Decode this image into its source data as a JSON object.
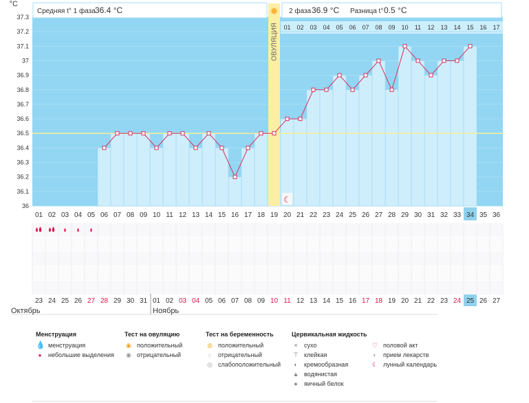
{
  "header": {
    "y_unit": "°C",
    "phase1_label": "Средняя t° 1 фаза",
    "phase1_value": "36.4 °C",
    "phase2_label": "2 фаза",
    "phase2_value": "36.9 °C",
    "diff_label": "Разница t°",
    "diff_value": "0.5 °C"
  },
  "ovulation_label": "ОВУЛЯЦИЯ",
  "chart_data": {
    "type": "line",
    "title": "",
    "ylabel": "°C",
    "ylim": [
      36.0,
      37.3
    ],
    "yticks": [
      "36",
      "36.1",
      "36.2",
      "36.3",
      "36.4",
      "36.5",
      "36.6",
      "36.7",
      "36.8",
      "36.9",
      "37",
      "37.1",
      "37.2",
      "37.3"
    ],
    "cycle_days": [
      "01",
      "02",
      "03",
      "04",
      "05",
      "06",
      "07",
      "08",
      "09",
      "10",
      "11",
      "12",
      "13",
      "14",
      "15",
      "16",
      "17",
      "18",
      "19",
      "20",
      "21",
      "22",
      "23",
      "24",
      "25",
      "26",
      "27",
      "28",
      "29",
      "30",
      "31",
      "32",
      "33",
      "34",
      "35",
      "36"
    ],
    "today_cycle_day": "34",
    "temperatures": [
      null,
      null,
      null,
      null,
      null,
      36.4,
      36.5,
      36.5,
      36.5,
      36.4,
      36.5,
      36.5,
      36.4,
      36.5,
      36.4,
      36.2,
      36.4,
      36.5,
      36.5,
      36.6,
      36.6,
      36.8,
      36.8,
      36.9,
      36.8,
      36.9,
      37.0,
      36.8,
      37.1,
      37.0,
      36.9,
      37.0,
      37.0,
      37.1,
      null,
      null
    ],
    "coverline": 36.5,
    "ovulation_cycle_day": "19",
    "phase2_day_numbers": [
      "01",
      "02",
      "03",
      "04",
      "05",
      "06",
      "07",
      "08",
      "09",
      "10",
      "11",
      "12",
      "13",
      "14",
      "15",
      "16",
      "17"
    ],
    "calendar_dates": [
      "23",
      "24",
      "25",
      "26",
      "27",
      "28",
      "29",
      "30",
      "31",
      "01",
      "02",
      "03",
      "04",
      "05",
      "06",
      "07",
      "08",
      "09",
      "10",
      "11",
      "12",
      "13",
      "14",
      "15",
      "16",
      "17",
      "18",
      "19",
      "20",
      "21",
      "22",
      "23",
      "24",
      "25",
      "26",
      "27"
    ],
    "weekend_dates_index": [
      4,
      5,
      11,
      12,
      18,
      19,
      25,
      26,
      32
    ],
    "today_date": "25",
    "months": [
      "Октябрь",
      "Ноябрь"
    ],
    "menstruation": [
      "big",
      "big",
      "small",
      "small",
      "small",
      null,
      null,
      null,
      null,
      null,
      null,
      null,
      null,
      null,
      null,
      null,
      null,
      null,
      null,
      null,
      null,
      null,
      null,
      null,
      null,
      null,
      null,
      null,
      null,
      null,
      null,
      null,
      null,
      null,
      null,
      null
    ],
    "moon_cycle_day": "20"
  },
  "colors": {
    "sky": "#92d6f3",
    "bar": "#cfeefc",
    "grid": "#a9def6",
    "line": "#d33260",
    "ovulation": "#fceea3",
    "coverline": "#f7ef98",
    "accent_red": "#e0114a",
    "today": "#8fd2ee"
  },
  "legend": {
    "menstruation": {
      "title": "Менструация",
      "items": [
        {
          "icon": "drop-icon",
          "label": "менструация"
        },
        {
          "icon": "small-drop-icon",
          "label": "небольшие выделения"
        }
      ]
    },
    "ovulation_test": {
      "title": "Тест на овуляцию",
      "items": [
        {
          "icon": "sun-positive-icon",
          "label": "положительный"
        },
        {
          "icon": "sun-negative-icon",
          "label": "отрицательный"
        }
      ]
    },
    "pregnancy_test": {
      "title": "Тест на беременность",
      "items": [
        {
          "icon": "test-positive-icon",
          "label": "положительный"
        },
        {
          "icon": "test-negative-icon",
          "label": "отрицательный"
        },
        {
          "icon": "test-weak-icon",
          "label": "слабоположительный"
        }
      ]
    },
    "cervical": {
      "title": "Цервикальная жидкость",
      "items": [
        {
          "icon": "dry-icon",
          "label": "сухо"
        },
        {
          "icon": "sticky-icon",
          "label": "клейкая"
        },
        {
          "icon": "creamy-icon",
          "label": "кремообразная"
        },
        {
          "icon": "watery-icon",
          "label": "водянистая"
        },
        {
          "icon": "eggwhite-icon",
          "label": "яичный белок"
        }
      ]
    },
    "other": {
      "items": [
        {
          "icon": "heart-icon",
          "label": "половой акт"
        },
        {
          "icon": "pill-icon",
          "label": "прием лекарств"
        },
        {
          "icon": "moon-icon",
          "label": "лунный календарь"
        }
      ]
    }
  }
}
